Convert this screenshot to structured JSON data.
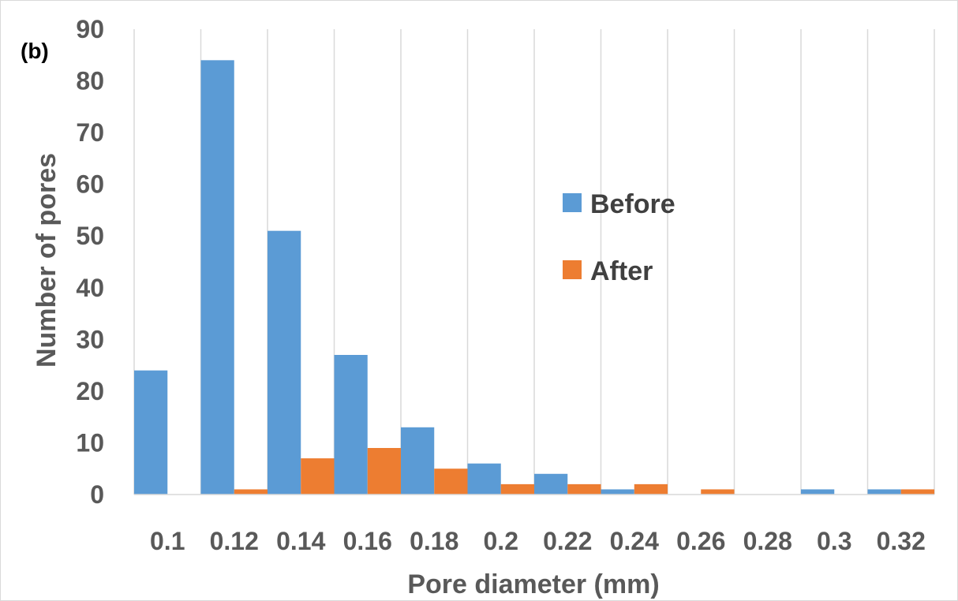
{
  "chart_data": {
    "type": "bar",
    "panel_label": "(b)",
    "title": "",
    "xlabel": "Pore diameter (mm)",
    "ylabel": "Number of pores",
    "categories": [
      "0.1",
      "0.12",
      "0.14",
      "0.16",
      "0.18",
      "0.2",
      "0.22",
      "0.24",
      "0.26",
      "0.28",
      "0.3",
      "0.32"
    ],
    "series": [
      {
        "name": "Before",
        "color": "#5b9bd5",
        "values": [
          24,
          84,
          51,
          27,
          13,
          6,
          4,
          1,
          0,
          0,
          1,
          1
        ]
      },
      {
        "name": "After",
        "color": "#ed7d31",
        "values": [
          0,
          1,
          7,
          9,
          5,
          2,
          2,
          2,
          1,
          0,
          0,
          1
        ]
      }
    ],
    "ylim": [
      0,
      90
    ],
    "yticks": [
      "0",
      "10",
      "20",
      "30",
      "40",
      "50",
      "60",
      "70",
      "80",
      "90"
    ],
    "grid": "vertical",
    "legend_position": "center-right"
  }
}
